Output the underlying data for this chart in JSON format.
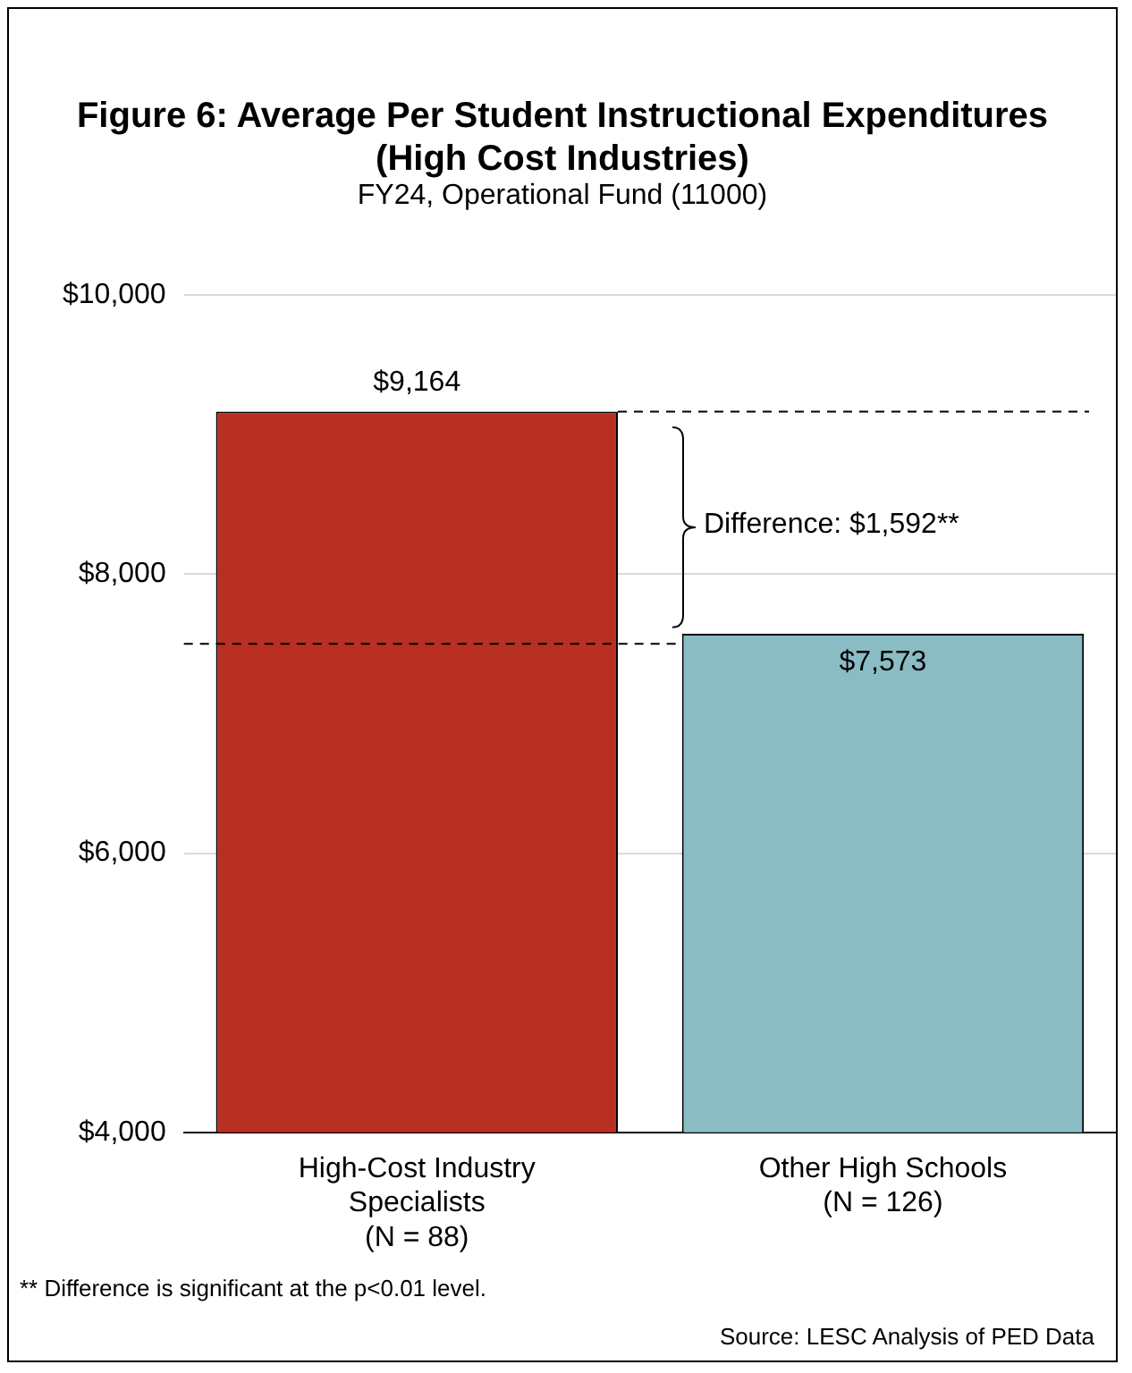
{
  "chart_data": {
    "type": "bar",
    "title": "Figure 6: Average Per Student Instructional Expenditures (High Cost Industries)",
    "subtitle": "FY24, Operational Fund (11000)",
    "categories": [
      "High-Cost Industry\nSpecialists\n(N = 88)",
      "Other High Schools\n(N = 126)"
    ],
    "values": [
      9164,
      7573
    ],
    "colors": [
      "#b83022",
      "#8abcc4"
    ],
    "value_labels": [
      "$9,164",
      "$7,573"
    ],
    "ylim": [
      4000,
      10000
    ],
    "yticks": [
      {
        "value": 4000,
        "label": "$4,000"
      },
      {
        "value": 6000,
        "label": "$6,000"
      },
      {
        "value": 8000,
        "label": "$8,000"
      },
      {
        "value": 10000,
        "label": "$10,000"
      }
    ],
    "grid": "y",
    "legend": false,
    "ref_lines": [
      {
        "axis": "y",
        "value": 9164,
        "line_style": "dashed",
        "color": "#000000"
      },
      {
        "axis": "y",
        "value": 7500,
        "line_style": "dashed",
        "color": "#000000"
      }
    ],
    "annotations": [
      "Difference: $1,592**",
      "** Difference is significant at the p<0.01 level.",
      "Source: LESC Analysis of PED Data"
    ]
  }
}
